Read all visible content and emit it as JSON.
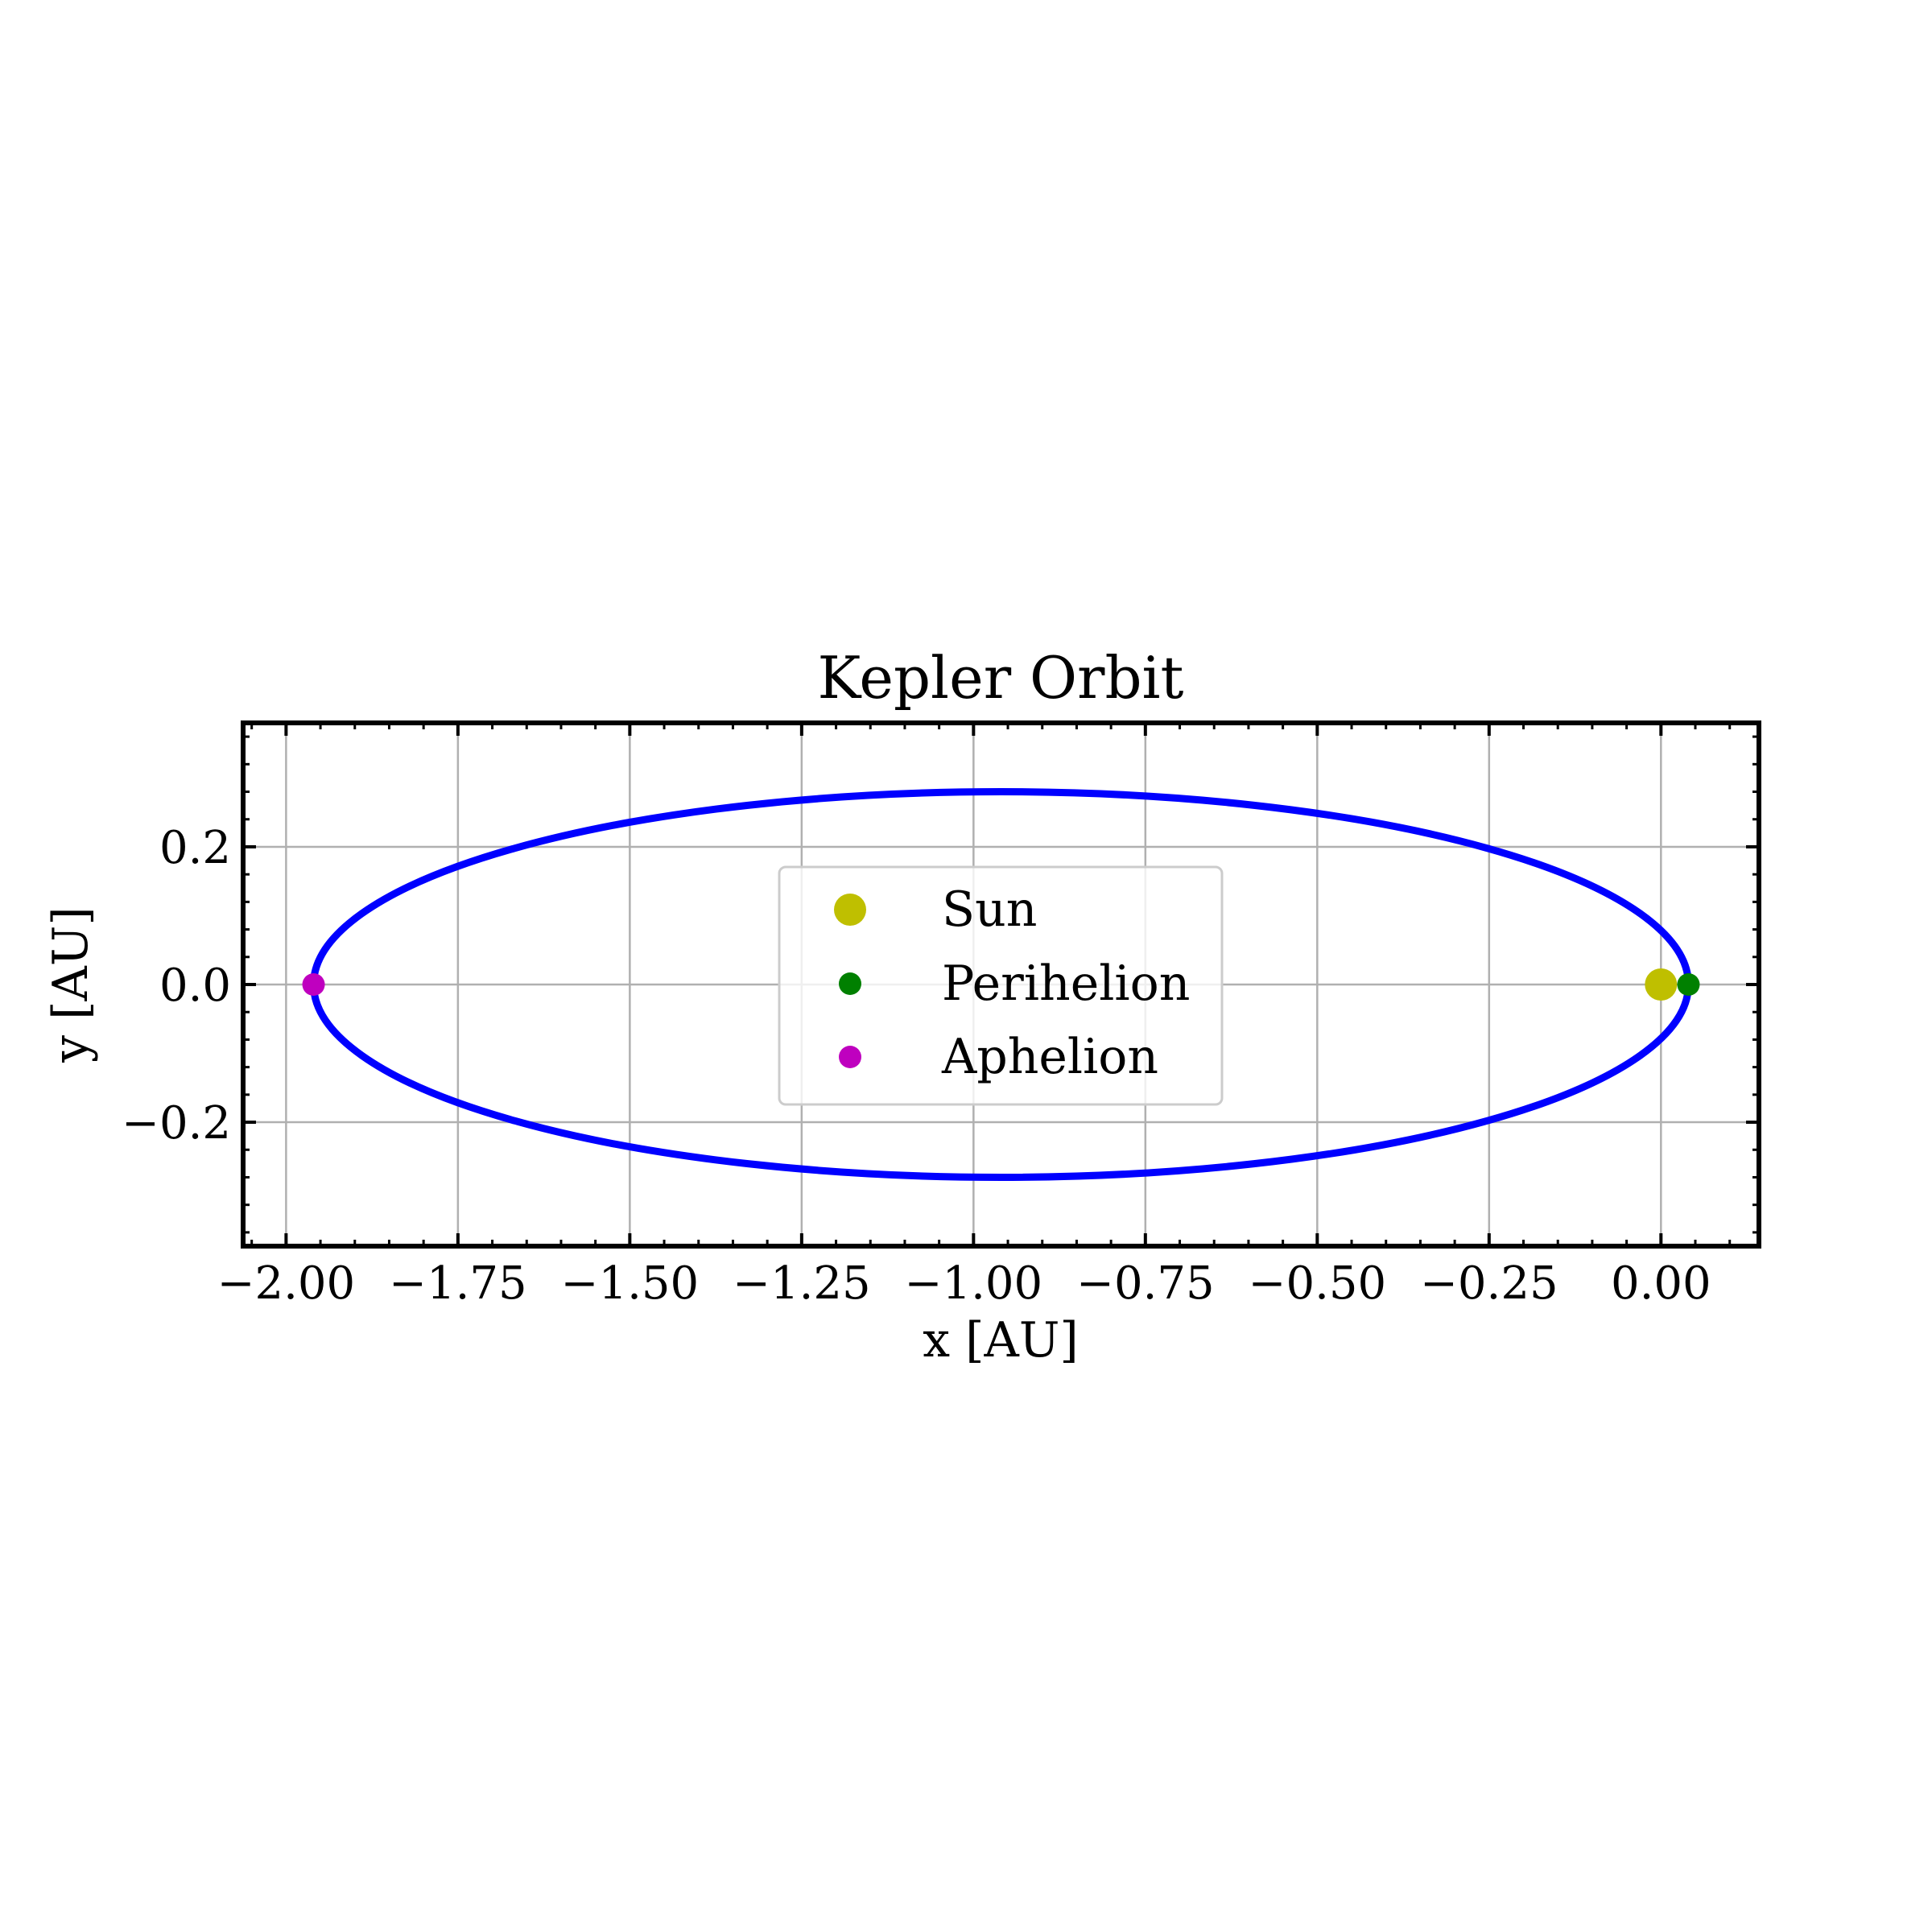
{
  "chart_data": {
    "type": "scatter",
    "title": "Kepler Orbit",
    "xlabel": "x [AU]",
    "ylabel": "y [AU]",
    "xlim": [
      -2.0625,
      0.1425
    ],
    "ylim": [
      -0.38,
      0.38
    ],
    "x_ticks": [
      -2.0,
      -1.75,
      -1.5,
      -1.25,
      -1.0,
      -0.75,
      -0.5,
      -0.25,
      0.0
    ],
    "x_tick_labels": [
      "−2.00",
      "−1.75",
      "−1.50",
      "−1.25",
      "−1.00",
      "−0.75",
      "−0.50",
      "−0.25",
      "0.00"
    ],
    "y_ticks": [
      -0.2,
      0.0,
      0.2
    ],
    "y_tick_labels": [
      "−0.2",
      "0.0",
      "0.2"
    ],
    "grid": true,
    "legend_position": "center",
    "orbit": {
      "center_x": -0.96,
      "center_y": 0.0,
      "semi_major_axis": 1.0,
      "semi_minor_axis": 0.28,
      "color": "#0000ff"
    },
    "points": [
      {
        "name": "Sun",
        "x": 0.0,
        "y": 0.0,
        "color": "#bfbf00"
      },
      {
        "name": "Perihelion",
        "x": 0.04,
        "y": 0.0,
        "color": "#008000"
      },
      {
        "name": "Aphelion",
        "x": -1.96,
        "y": 0.0,
        "color": "#bf00bf"
      }
    ]
  }
}
